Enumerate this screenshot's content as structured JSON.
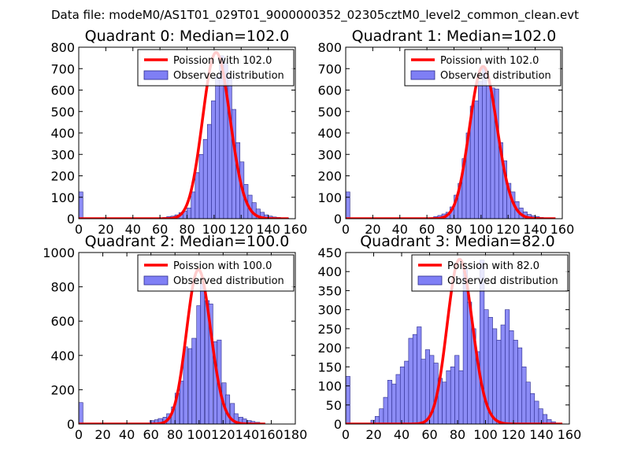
{
  "figure_title": "Data file: modeM0/AS1T01_029T01_9000000352_02305cztM0_level2_common_clean.evt",
  "colors": {
    "bar_fill": "#7f7ff5",
    "bar_edge": "#2a2a8a",
    "curve": "#ff0000",
    "axis": "#000000"
  },
  "chart_data": [
    {
      "type": "bar",
      "title": "Quadrant 0: Median=102.0",
      "xlim": [
        0,
        160
      ],
      "ylim": [
        0,
        800
      ],
      "xticks": [
        0,
        20,
        40,
        60,
        80,
        100,
        120,
        140,
        160
      ],
      "yticks": [
        0,
        100,
        200,
        300,
        400,
        500,
        600,
        700,
        800
      ],
      "bin_width": 3.1,
      "bins": [
        [
          0,
          125
        ],
        [
          59,
          4
        ],
        [
          62,
          6
        ],
        [
          65,
          10
        ],
        [
          68,
          12
        ],
        [
          71,
          18
        ],
        [
          74,
          28
        ],
        [
          77,
          35
        ],
        [
          80,
          50
        ],
        [
          83,
          125
        ],
        [
          86,
          215
        ],
        [
          89,
          300
        ],
        [
          92,
          370
        ],
        [
          95,
          440
        ],
        [
          98,
          550
        ],
        [
          101,
          660
        ],
        [
          104,
          760
        ],
        [
          107,
          725
        ],
        [
          110,
          660
        ],
        [
          113,
          510
        ],
        [
          116,
          355
        ],
        [
          119,
          265
        ],
        [
          122,
          160
        ],
        [
          125,
          110
        ],
        [
          128,
          75
        ],
        [
          131,
          45
        ],
        [
          134,
          30
        ],
        [
          137,
          18
        ],
        [
          140,
          12
        ],
        [
          143,
          8
        ],
        [
          146,
          6
        ],
        [
          149,
          4
        ],
        [
          152,
          3
        ]
      ],
      "poisson_mean": 102.0,
      "poisson_peak": 775,
      "legend": [
        "Poission with 102.0",
        "Observed distribution"
      ]
    },
    {
      "type": "bar",
      "title": "Quadrant 1: Median=102.0",
      "xlim": [
        0,
        160
      ],
      "ylim": [
        0,
        800
      ],
      "xticks": [
        0,
        20,
        40,
        60,
        80,
        100,
        120,
        140,
        160
      ],
      "yticks": [
        0,
        100,
        200,
        300,
        400,
        500,
        600,
        700,
        800
      ],
      "bin_width": 3.1,
      "bins": [
        [
          0,
          125
        ],
        [
          62,
          5
        ],
        [
          65,
          10
        ],
        [
          68,
          15
        ],
        [
          71,
          22
        ],
        [
          74,
          30
        ],
        [
          77,
          55
        ],
        [
          80,
          110
        ],
        [
          83,
          165
        ],
        [
          86,
          280
        ],
        [
          89,
          400
        ],
        [
          92,
          525
        ],
        [
          95,
          550
        ],
        [
          98,
          640
        ],
        [
          101,
          700
        ],
        [
          104,
          620
        ],
        [
          107,
          610
        ],
        [
          110,
          605
        ],
        [
          113,
          355
        ],
        [
          116,
          270
        ],
        [
          119,
          165
        ],
        [
          122,
          125
        ],
        [
          125,
          80
        ],
        [
          128,
          50
        ],
        [
          131,
          32
        ],
        [
          134,
          20
        ],
        [
          137,
          14
        ],
        [
          140,
          10
        ],
        [
          143,
          6
        ],
        [
          146,
          4
        ],
        [
          149,
          3
        ]
      ],
      "poisson_mean": 102.0,
      "poisson_peak": 710,
      "legend": [
        "Poission with 102.0",
        "Observed distribution"
      ]
    },
    {
      "type": "bar",
      "title": "Quadrant 2: Median=100.0",
      "xlim": [
        0,
        180
      ],
      "ylim": [
        0,
        1000
      ],
      "xticks": [
        0,
        20,
        40,
        60,
        80,
        100,
        120,
        140,
        160,
        180
      ],
      "yticks": [
        0,
        200,
        400,
        600,
        800,
        1000
      ],
      "bin_width": 3.5,
      "bins": [
        [
          0,
          125
        ],
        [
          59,
          20
        ],
        [
          63,
          25
        ],
        [
          66,
          32
        ],
        [
          70,
          40
        ],
        [
          73,
          60
        ],
        [
          77,
          100
        ],
        [
          80,
          180
        ],
        [
          84,
          250
        ],
        [
          87,
          450
        ],
        [
          91,
          440
        ],
        [
          94,
          500
        ],
        [
          98,
          690
        ],
        [
          101,
          820
        ],
        [
          105,
          720
        ],
        [
          108,
          700
        ],
        [
          112,
          480
        ],
        [
          115,
          490
        ],
        [
          119,
          240
        ],
        [
          122,
          170
        ],
        [
          126,
          120
        ],
        [
          129,
          60
        ],
        [
          133,
          40
        ],
        [
          136,
          30
        ],
        [
          140,
          20
        ],
        [
          143,
          15
        ],
        [
          147,
          10
        ]
      ],
      "poisson_mean": 100.0,
      "poisson_peak": 900,
      "legend": [
        "Poission with 100.0",
        "Observed distribution"
      ]
    },
    {
      "type": "bar",
      "title": "Quadrant 3: Median=82.0",
      "xlim": [
        0,
        160
      ],
      "ylim": [
        0,
        450
      ],
      "xticks": [
        0,
        20,
        40,
        60,
        80,
        100,
        120,
        140,
        160
      ],
      "yticks": [
        0,
        50,
        100,
        150,
        200,
        250,
        300,
        350,
        400,
        450
      ],
      "bin_width": 3.1,
      "bins": [
        [
          0,
          125
        ],
        [
          18,
          10
        ],
        [
          21,
          20
        ],
        [
          24,
          40
        ],
        [
          27,
          70
        ],
        [
          30,
          115
        ],
        [
          33,
          105
        ],
        [
          36,
          130
        ],
        [
          39,
          150
        ],
        [
          42,
          165
        ],
        [
          45,
          225
        ],
        [
          48,
          235
        ],
        [
          51,
          255
        ],
        [
          54,
          170
        ],
        [
          57,
          195
        ],
        [
          60,
          180
        ],
        [
          63,
          160
        ],
        [
          66,
          120
        ],
        [
          69,
          110
        ],
        [
          72,
          140
        ],
        [
          75,
          150
        ],
        [
          78,
          180
        ],
        [
          81,
          140
        ],
        [
          84,
          410
        ],
        [
          87,
          320
        ],
        [
          90,
          250
        ],
        [
          93,
          190
        ],
        [
          96,
          430
        ],
        [
          99,
          300
        ],
        [
          102,
          280
        ],
        [
          105,
          250
        ],
        [
          108,
          220
        ],
        [
          111,
          260
        ],
        [
          114,
          300
        ],
        [
          117,
          245
        ],
        [
          120,
          220
        ],
        [
          123,
          200
        ],
        [
          126,
          150
        ],
        [
          129,
          110
        ],
        [
          132,
          80
        ],
        [
          135,
          60
        ],
        [
          138,
          40
        ],
        [
          141,
          25
        ],
        [
          144,
          12
        ],
        [
          147,
          6
        ]
      ],
      "poisson_mean": 82.0,
      "poisson_peak": 432,
      "legend": [
        "Poission with 82.0",
        "Observed distribution"
      ]
    }
  ]
}
